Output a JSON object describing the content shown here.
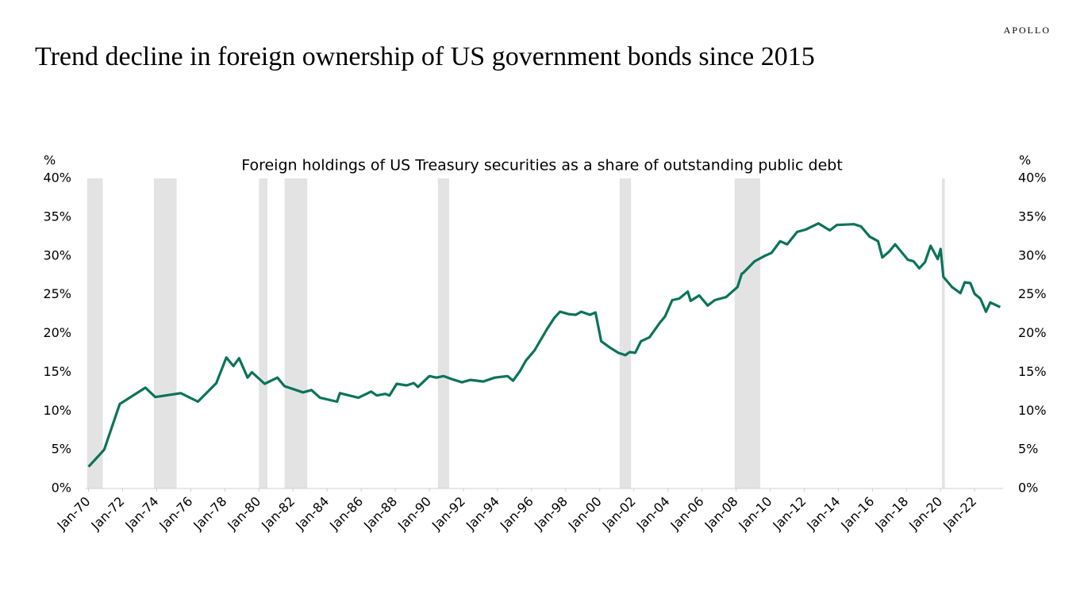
{
  "brand": "APOLLO",
  "chart_data": {
    "type": "line",
    "title": "Trend decline in foreign ownership of US government bonds since 2015",
    "subtitle": "Foreign holdings of US Treasury securities as a share of outstanding public debt",
    "ylabel": "%",
    "y2label": "%",
    "color": "#0b735a",
    "grid": false,
    "x": [
      "1970-01",
      "1970-12",
      "1971-11",
      "1973-05",
      "1973-12",
      "1975-06",
      "1976-06",
      "1977-07",
      "1978-02",
      "1978-07",
      "1978-11",
      "1979-05",
      "1979-08",
      "1980-05",
      "1981-02",
      "1981-07",
      "1982-08",
      "1983-02",
      "1983-08",
      "1984-08",
      "1984-10",
      "1985-11",
      "1986-08",
      "1986-12",
      "1987-06",
      "1987-09",
      "1988-02",
      "1988-09",
      "1989-02",
      "1989-05",
      "1990-01",
      "1990-06",
      "1990-11",
      "1991-05",
      "1991-12",
      "1992-06",
      "1993-03",
      "1993-11",
      "1994-08",
      "1994-12",
      "1995-05",
      "1995-09",
      "1996-03",
      "1996-12",
      "1997-05",
      "1997-09",
      "1998-03",
      "1998-08",
      "1998-12",
      "1999-06",
      "1999-10",
      "2000-02",
      "2000-08",
      "2001-02",
      "2001-07",
      "2001-10",
      "2002-02",
      "2002-06",
      "2002-12",
      "2003-07",
      "2003-11",
      "2004-04",
      "2004-09",
      "2005-03",
      "2005-05",
      "2005-11",
      "2006-05",
      "2006-10",
      "2007-06",
      "2008-02",
      "2008-05",
      "2008-06",
      "2009-02",
      "2009-09",
      "2010-02",
      "2010-08",
      "2011-01",
      "2011-08",
      "2012-02",
      "2012-11",
      "2013-07",
      "2013-12",
      "2014-12",
      "2015-05",
      "2015-11",
      "2016-05",
      "2016-08",
      "2017-01",
      "2017-05",
      "2018-02",
      "2018-06",
      "2018-10",
      "2019-02",
      "2019-06",
      "2019-11",
      "2020-01",
      "2020-03",
      "2020-09",
      "2021-03",
      "2021-06",
      "2021-10",
      "2022-01",
      "2022-05",
      "2022-09",
      "2022-12",
      "2023-07"
    ],
    "values": [
      2.8,
      5.0,
      10.9,
      13.0,
      11.8,
      12.3,
      11.2,
      13.6,
      16.9,
      15.8,
      16.8,
      14.3,
      15.0,
      13.5,
      14.3,
      13.2,
      12.4,
      12.7,
      11.7,
      11.2,
      12.3,
      11.7,
      12.5,
      12.0,
      12.2,
      12.0,
      13.5,
      13.3,
      13.6,
      13.1,
      14.5,
      14.3,
      14.5,
      14.1,
      13.7,
      14.0,
      13.8,
      14.3,
      14.5,
      13.9,
      15.2,
      16.5,
      17.8,
      20.6,
      22.0,
      22.8,
      22.5,
      22.4,
      22.8,
      22.4,
      22.7,
      19.0,
      18.2,
      17.5,
      17.2,
      17.6,
      17.5,
      19.0,
      19.5,
      21.3,
      22.2,
      24.3,
      24.5,
      25.4,
      24.2,
      24.9,
      23.6,
      24.3,
      24.7,
      26.0,
      27.7,
      27.8,
      29.3,
      30.0,
      30.4,
      31.9,
      31.5,
      33.1,
      33.4,
      34.2,
      33.3,
      34.0,
      34.1,
      33.8,
      32.5,
      31.9,
      29.8,
      30.6,
      31.5,
      29.5,
      29.3,
      28.4,
      29.2,
      31.3,
      29.6,
      30.9,
      27.3,
      26.0,
      25.2,
      26.6,
      26.5,
      25.1,
      24.5,
      22.8,
      24.0,
      23.4
    ],
    "recessions": [
      {
        "start": "1969-12",
        "end": "1970-11"
      },
      {
        "start": "1973-11",
        "end": "1975-03"
      },
      {
        "start": "1980-01",
        "end": "1980-07"
      },
      {
        "start": "1981-07",
        "end": "1982-11"
      },
      {
        "start": "1990-07",
        "end": "1991-03"
      },
      {
        "start": "2001-03",
        "end": "2001-11"
      },
      {
        "start": "2007-12",
        "end": "2009-06"
      },
      {
        "start": "2020-02",
        "end": "2020-04"
      }
    ],
    "recession_color": "#e3e3e3",
    "xlim": [
      "1969-11",
      "2023-09"
    ],
    "xticks": [
      {
        "value": "1970-01",
        "label": "Jan-70"
      },
      {
        "value": "1972-01",
        "label": "Jan-72"
      },
      {
        "value": "1974-01",
        "label": "Jan-74"
      },
      {
        "value": "1976-01",
        "label": "Jan-76"
      },
      {
        "value": "1978-01",
        "label": "Jan-78"
      },
      {
        "value": "1980-01",
        "label": "Jan-80"
      },
      {
        "value": "1982-01",
        "label": "Jan-82"
      },
      {
        "value": "1984-01",
        "label": "Jan-84"
      },
      {
        "value": "1986-01",
        "label": "Jan-86"
      },
      {
        "value": "1988-01",
        "label": "Jan-88"
      },
      {
        "value": "1990-01",
        "label": "Jan-90"
      },
      {
        "value": "1992-01",
        "label": "Jan-92"
      },
      {
        "value": "1994-01",
        "label": "Jan-94"
      },
      {
        "value": "1996-01",
        "label": "Jan-96"
      },
      {
        "value": "1998-01",
        "label": "Jan-98"
      },
      {
        "value": "2000-01",
        "label": "Jan-00"
      },
      {
        "value": "2002-01",
        "label": "Jan-02"
      },
      {
        "value": "2004-01",
        "label": "Jan-04"
      },
      {
        "value": "2006-01",
        "label": "Jan-06"
      },
      {
        "value": "2008-01",
        "label": "Jan-08"
      },
      {
        "value": "2010-01",
        "label": "Jan-10"
      },
      {
        "value": "2012-01",
        "label": "Jan-12"
      },
      {
        "value": "2014-01",
        "label": "Jan-14"
      },
      {
        "value": "2016-01",
        "label": "Jan-16"
      },
      {
        "value": "2018-01",
        "label": "Jan-18"
      },
      {
        "value": "2020-01",
        "label": "Jan-20"
      },
      {
        "value": "2022-01",
        "label": "Jan-22"
      }
    ],
    "ylim": [
      0,
      40
    ],
    "yticks": [
      {
        "value": 0,
        "label": "0%"
      },
      {
        "value": 5,
        "label": "5%"
      },
      {
        "value": 10,
        "label": "10%"
      },
      {
        "value": 15,
        "label": "15%"
      },
      {
        "value": 20,
        "label": "20%"
      },
      {
        "value": 25,
        "label": "25%"
      },
      {
        "value": 30,
        "label": "30%"
      },
      {
        "value": 35,
        "label": "35%"
      },
      {
        "value": 40,
        "label": "40%"
      }
    ],
    "y2lim": [
      0,
      40
    ],
    "y2ticks": [
      {
        "value": 0,
        "label": "0%"
      },
      {
        "value": 5,
        "label": "5%"
      },
      {
        "value": 10,
        "label": "10%"
      },
      {
        "value": 15,
        "label": "15%"
      },
      {
        "value": 20,
        "label": "20%"
      },
      {
        "value": 25,
        "label": "25%"
      },
      {
        "value": 30,
        "label": "30%"
      },
      {
        "value": 35,
        "label": "35%"
      },
      {
        "value": 40,
        "label": "40%"
      }
    ]
  }
}
